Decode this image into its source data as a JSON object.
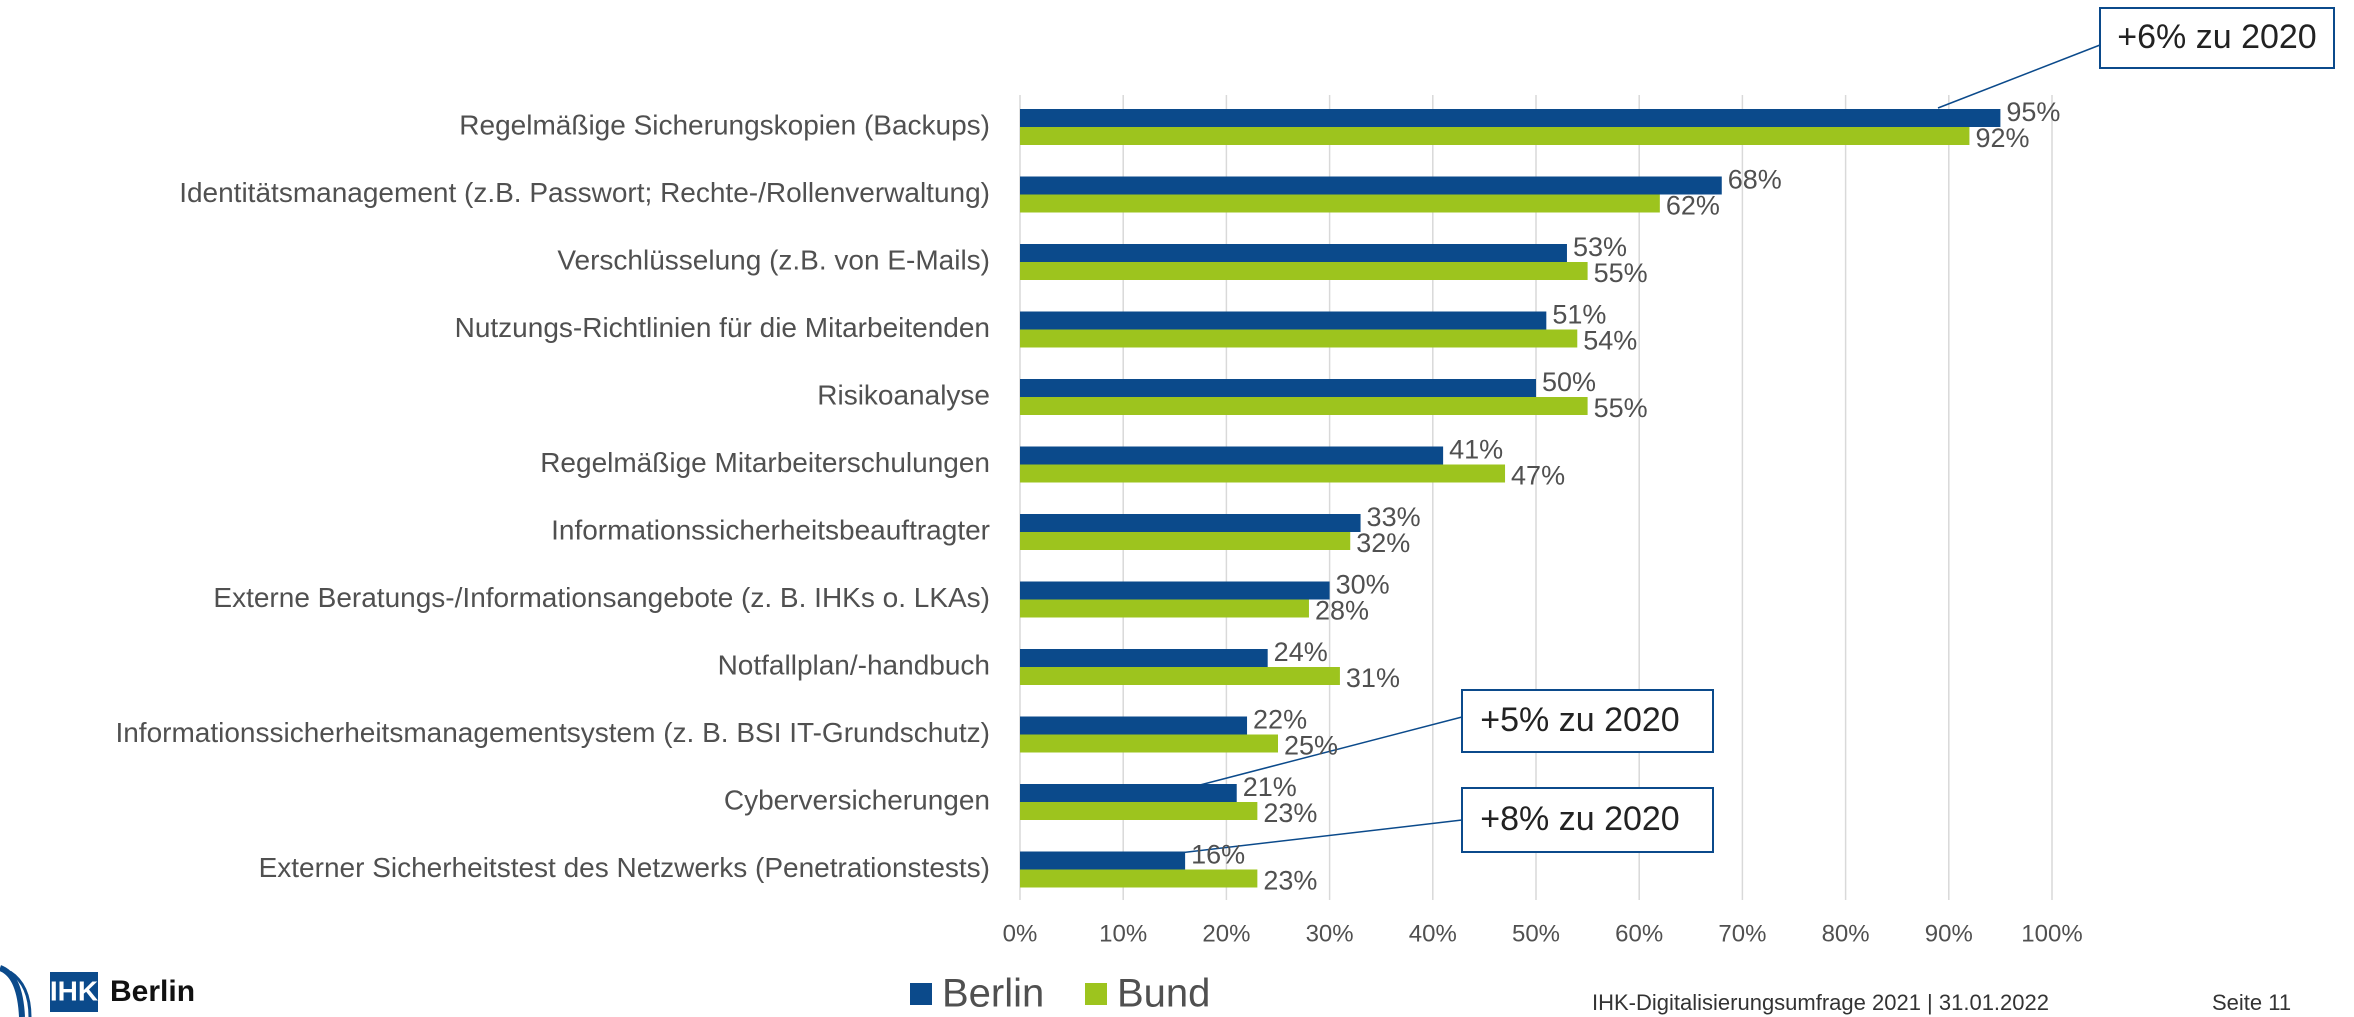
{
  "chart_data": {
    "type": "hbar",
    "categories": [
      "Regelmäßige Sicherungskopien (Backups)",
      "Identitätsmanagement (z.B. Passwort; Rechte-/Rollenverwaltung)",
      "Verschlüsselung (z.B. von E-Mails)",
      "Nutzungs-Richtlinien für die Mitarbeitenden",
      "Risikoanalyse",
      "Regelmäßige Mitarbeiterschulungen",
      "Informationssicherheitsbeauftragter",
      "Externe Beratungs-/Informationsangebote (z. B. IHKs o. LKAs)",
      "Notfallplan/-handbuch",
      "Informationssicherheitsmanagementsystem (z. B. BSI IT-Grundschutz)",
      "Cyberversicherungen",
      "Externer Sicherheitstest des Netzwerks (Penetrationstests)"
    ],
    "series": [
      {
        "name": "Berlin",
        "color": "#0b4a8b",
        "values": [
          95,
          68,
          53,
          51,
          50,
          41,
          33,
          30,
          24,
          22,
          21,
          16
        ],
        "value_labels": [
          "95%",
          "68%",
          "53%",
          "51%",
          "50%",
          "41%",
          "33%",
          "30%",
          "24%",
          "22%",
          "21%",
          "16%"
        ]
      },
      {
        "name": "Bund",
        "color": "#9dc41e",
        "values": [
          92,
          62,
          55,
          54,
          55,
          47,
          32,
          28,
          31,
          25,
          23,
          23
        ],
        "value_labels": [
          "92%",
          "62%",
          "55%",
          "54%",
          "55%",
          "47%",
          "32%",
          "28%",
          "31%",
          "25%",
          "23%",
          "23%"
        ]
      }
    ],
    "xlim": [
      0,
      100
    ],
    "xticks": [
      {
        "value": 0,
        "label": "0%"
      },
      {
        "value": 10,
        "label": "10%"
      },
      {
        "value": 20,
        "label": "20%"
      },
      {
        "value": 30,
        "label": "30%"
      },
      {
        "value": 40,
        "label": "40%"
      },
      {
        "value": 50,
        "label": "50%"
      },
      {
        "value": 60,
        "label": "60%"
      },
      {
        "value": 70,
        "label": "70%"
      },
      {
        "value": 80,
        "label": "80%"
      },
      {
        "value": 90,
        "label": "90%"
      },
      {
        "value": 100,
        "label": "100%"
      }
    ],
    "grid": true,
    "legend": "bottom",
    "annotations": [
      "+6% zu 2020",
      "+5% zu 2020",
      "+8% zu 2020"
    ]
  },
  "footer": {
    "logo": "IHK",
    "org": "Berlin",
    "source": "IHK-Digitalisierungsumfrage  2021 | 31.01.2022",
    "page": "Seite  11"
  }
}
